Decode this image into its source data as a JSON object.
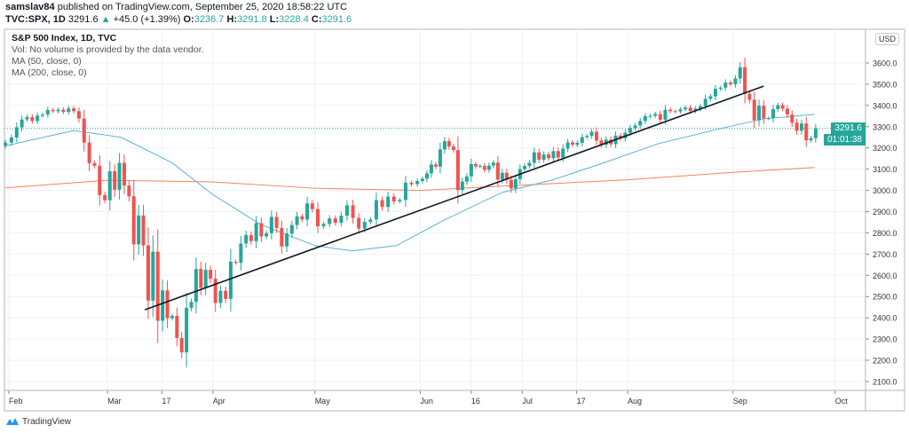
{
  "header": {
    "publisher": "samslav84",
    "published_text": "published on TradingView.com, September 25, 2020 18:58:22 UTC",
    "symbol": "TVC:SPX, 1D",
    "last": "3291.6",
    "change": "+45.0 (+1.39%)",
    "o_label": "O:",
    "o": "3236.7",
    "h_label": "H:",
    "h": "3291.8",
    "l_label": "L:",
    "l": "3228.4",
    "c_label": "C:",
    "c": "3291.6"
  },
  "legend": {
    "title": "S&P 500 Index, 1D, TVC",
    "vol": "Vol: No volume is provided by the data vendor.",
    "ma50": "MA (50, close, 0)",
    "ma200": "MA (200, close, 0)"
  },
  "price_axis": {
    "currency": "USD",
    "last_price_label": "3291.6",
    "countdown": "01:01:38"
  },
  "footer": {
    "brand": "TradingView"
  },
  "colors": {
    "up": "#26a69a",
    "down": "#ef5350",
    "ma50": "#5ab0d8",
    "ma200": "#f0845c",
    "trendline": "#131722",
    "grid": "#eef1f6"
  },
  "chart_data": {
    "type": "candlestick",
    "ylim": [
      2050,
      3700
    ],
    "yticks": [
      2100,
      2200,
      2300,
      2400,
      2500,
      2600,
      2700,
      2800,
      2900,
      3000,
      3100,
      3200,
      3300,
      3400,
      3500,
      3600
    ],
    "ytick_labels": [
      "2100.0",
      "2200.0",
      "2300.0",
      "2400.0",
      "2500.0",
      "2600.0",
      "2700.0",
      "2800.0",
      "2900.0",
      "3000.0",
      "3100.0",
      "3200.0",
      "3300.0",
      "3400.0",
      "3500.0",
      "3600.0"
    ],
    "xlim": [
      "2020-01-30",
      "2020-10-10"
    ],
    "xticks": [
      {
        "date": "2020-02-01",
        "label": "Feb"
      },
      {
        "date": "2020-03-01",
        "label": "Mar"
      },
      {
        "date": "2020-03-17",
        "label": "17"
      },
      {
        "date": "2020-04-01",
        "label": "Apr"
      },
      {
        "date": "2020-05-01",
        "label": "May"
      },
      {
        "date": "2020-06-01",
        "label": "Jun"
      },
      {
        "date": "2020-06-16",
        "label": "16"
      },
      {
        "date": "2020-07-01",
        "label": "Jul"
      },
      {
        "date": "2020-07-17",
        "label": "17"
      },
      {
        "date": "2020-08-01",
        "label": "Aug"
      },
      {
        "date": "2020-09-01",
        "label": "Sep"
      },
      {
        "date": "2020-10-01",
        "label": "Oct"
      }
    ],
    "last_price": 3291.6,
    "months": [
      {
        "month": "2020-01",
        "from": 31,
        "to": 31,
        "closes": [
          3225
        ]
      },
      {
        "month": "2020-02",
        "from": 1,
        "to": 29,
        "closes": [
          3249,
          3297,
          3334,
          3345,
          3327,
          3352,
          3357,
          3379,
          3373,
          3380,
          3370,
          3386,
          3373,
          3338,
          3225,
          3128,
          3116,
          2978,
          2954
        ]
      },
      {
        "month": "2020-03",
        "from": 1,
        "to": 31,
        "closes": [
          3090,
          3003,
          3130,
          3023,
          2972,
          2746,
          2882,
          2741,
          2481,
          2711,
          2386,
          2529,
          2398,
          2409,
          2305,
          2237,
          2447,
          2475,
          2630,
          2541,
          2626,
          2584
        ]
      },
      {
        "month": "2020-04",
        "from": 1,
        "to": 30,
        "closes": [
          2470,
          2527,
          2489,
          2664,
          2659,
          2750,
          2790,
          2761,
          2846,
          2783,
          2799,
          2875,
          2823,
          2736,
          2797,
          2837,
          2878,
          2863,
          2939,
          2912
        ]
      },
      {
        "month": "2020-05",
        "from": 1,
        "to": 31,
        "closes": [
          2831,
          2842,
          2868,
          2848,
          2881,
          2930,
          2870,
          2820,
          2852,
          2863,
          2954,
          2922,
          2971,
          2948,
          2955,
          3036,
          3029,
          3044
        ]
      },
      {
        "month": "2020-06",
        "from": 1,
        "to": 30,
        "closes": [
          3055,
          3080,
          3122,
          3112,
          3193,
          3232,
          3207,
          3190,
          3002,
          3041,
          3066,
          3124,
          3113,
          3115,
          3097,
          3117,
          3131,
          3051,
          3083,
          3050,
          3009,
          3053,
          3100
        ]
      },
      {
        "month": "2020-07",
        "from": 1,
        "to": 31,
        "closes": [
          3115,
          3130,
          3179,
          3145,
          3169,
          3152,
          3185,
          3155,
          3197,
          3226,
          3215,
          3224,
          3251,
          3257,
          3276,
          3235,
          3215,
          3239,
          3218,
          3258,
          3246,
          3271
        ]
      },
      {
        "month": "2020-08",
        "from": 1,
        "to": 31,
        "closes": [
          3294,
          3306,
          3327,
          3349,
          3351,
          3360,
          3333,
          3380,
          3373,
          3372,
          3382,
          3390,
          3374,
          3385,
          3397,
          3431,
          3443,
          3478,
          3484,
          3508,
          3500
        ]
      },
      {
        "month": "2020-09",
        "from": 1,
        "to": 25,
        "closes": [
          3527,
          3580,
          3455,
          3427,
          3331,
          3399,
          3339,
          3340,
          3383,
          3401,
          3385,
          3357,
          3319,
          3281,
          3315,
          3236,
          3246,
          3291.6
        ]
      }
    ],
    "series": [
      {
        "name": "MA (50, close, 0)",
        "points": [
          [
            "2020-01-31",
            3210
          ],
          [
            "2020-02-20",
            3282
          ],
          [
            "2020-03-05",
            3250
          ],
          [
            "2020-03-20",
            3130
          ],
          [
            "2020-04-01",
            2980
          ],
          [
            "2020-04-15",
            2840
          ],
          [
            "2020-05-01",
            2740
          ],
          [
            "2020-05-12",
            2715
          ],
          [
            "2020-05-25",
            2740
          ],
          [
            "2020-06-08",
            2860
          ],
          [
            "2020-06-25",
            2990
          ],
          [
            "2020-07-10",
            3050
          ],
          [
            "2020-07-25",
            3130
          ],
          [
            "2020-08-10",
            3220
          ],
          [
            "2020-08-28",
            3290
          ],
          [
            "2020-09-10",
            3337
          ],
          [
            "2020-09-25",
            3358
          ]
        ]
      },
      {
        "name": "MA (200, close, 0)",
        "points": [
          [
            "2020-01-31",
            3012
          ],
          [
            "2020-03-01",
            3048
          ],
          [
            "2020-04-01",
            3040
          ],
          [
            "2020-05-01",
            3010
          ],
          [
            "2020-06-01",
            3000
          ],
          [
            "2020-07-01",
            3025
          ],
          [
            "2020-08-01",
            3050
          ],
          [
            "2020-09-01",
            3085
          ],
          [
            "2020-09-25",
            3108
          ]
        ]
      }
    ],
    "trendline": [
      [
        "2020-03-12",
        2438
      ],
      [
        "2020-09-10",
        3491
      ]
    ]
  }
}
